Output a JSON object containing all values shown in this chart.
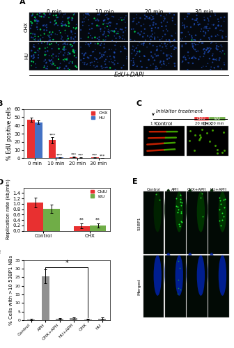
{
  "panel_B": {
    "categories": [
      "0 min",
      "10 min",
      "20 min",
      "30 min"
    ],
    "CHX_values": [
      47,
      22,
      1.5,
      1.0
    ],
    "HU_values": [
      44,
      1.0,
      0.8,
      0.5
    ],
    "CHX_errors": [
      2.5,
      3.5,
      0.5,
      0.3
    ],
    "HU_errors": [
      2.0,
      0.3,
      0.2,
      0.2
    ],
    "ylabel": "% EdU positive cells",
    "legend_CHX": "CHX",
    "legend_HU": "HU",
    "CHX_color": "#e83030",
    "HU_color": "#4472c4",
    "ylim": [
      0,
      60
    ],
    "yticks": [
      0,
      10,
      20,
      30,
      40,
      50,
      60
    ]
  },
  "panel_D": {
    "categories": [
      "Control",
      "CHX"
    ],
    "CldU_values": [
      1.05,
      0.18
    ],
    "IdU_values": [
      0.82,
      0.2
    ],
    "CldU_errors": [
      0.18,
      0.1
    ],
    "IdU_errors": [
      0.15,
      0.08
    ],
    "ylabel": "Replication rate (kb/min)",
    "legend_CldU": "CldU",
    "legend_IdU": "IdU",
    "CldU_color": "#e83030",
    "IdU_color": "#70ad47",
    "ylim": [
      0,
      1.6
    ],
    "yticks": [
      0.0,
      0.2,
      0.4,
      0.6,
      0.8,
      1.0,
      1.2,
      1.4
    ]
  },
  "panel_F": {
    "categories": [
      "Control",
      "APH",
      "CHX+APH",
      "HU+APH",
      "CHX",
      "HU"
    ],
    "values": [
      0.5,
      25.5,
      1.0,
      1.2,
      0.5,
      1.0
    ],
    "errors": [
      0.3,
      4.0,
      0.4,
      0.5,
      0.2,
      0.5
    ],
    "ylabel": "% Cells with >10 53BP1 NBs",
    "bar_color": "#909090",
    "ylim": [
      0,
      35
    ],
    "yticks": [
      0,
      5,
      10,
      15,
      20,
      25,
      30,
      35
    ]
  },
  "label_fontsize": 6,
  "tick_fontsize": 5.5,
  "background_color": "#ffffff",
  "panel_label_fontsize": 8
}
